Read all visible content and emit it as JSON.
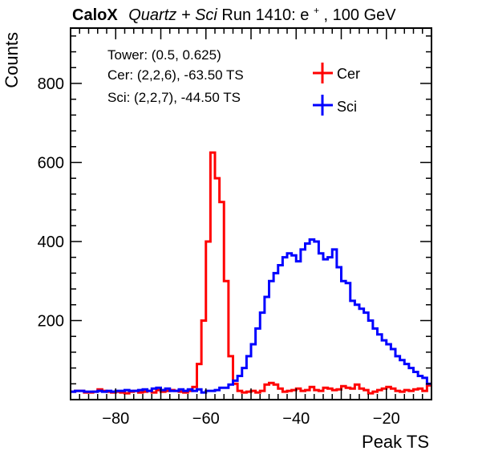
{
  "chart_data": {
    "type": "step-histogram",
    "title": {
      "brand": "CaloX",
      "subtitle_italic": "Quartz + Sci",
      "rest": " Run 1410: e",
      "superscript": "+",
      "tail": ", 100 GeV"
    },
    "xlabel": "Peak TS",
    "ylabel": "Counts",
    "xlim": [
      -90,
      -10
    ],
    "ylim": [
      0,
      940
    ],
    "x_ticks": [
      -80,
      -60,
      -40,
      -20
    ],
    "y_ticks": [
      200,
      400,
      600,
      800
    ],
    "info_lines": [
      "Tower: (0.5, 0.625)",
      "Cer: (2,2,6), -63.50 TS",
      "Sci: (2,2,7), -44.50 TS"
    ],
    "legend_position": "top-right",
    "series": [
      {
        "name": "Cer",
        "color": "#ff0000",
        "bin_width": 1,
        "x_start": -90,
        "values": [
          20,
          22,
          22,
          18,
          18,
          20,
          26,
          22,
          20,
          18,
          20,
          18,
          16,
          20,
          22,
          18,
          20,
          22,
          18,
          24,
          20,
          22,
          24,
          22,
          20,
          18,
          22,
          32,
          90,
          200,
          400,
          625,
          560,
          500,
          300,
          110,
          40,
          22,
          18,
          20,
          22,
          18,
          22,
          38,
          42,
          38,
          28,
          20,
          22,
          24,
          28,
          22,
          24,
          32,
          24,
          22,
          30,
          28,
          24,
          26,
          34,
          30,
          28,
          38,
          28,
          24,
          16,
          20,
          24,
          28,
          32,
          28,
          22,
          20,
          24,
          22,
          26,
          28,
          22,
          36
        ]
      },
      {
        "name": "Sci",
        "color": "#0000ff",
        "bin_width": 1,
        "x_start": -90,
        "values": [
          20,
          22,
          22,
          20,
          20,
          20,
          22,
          20,
          22,
          20,
          22,
          22,
          24,
          22,
          22,
          24,
          26,
          22,
          28,
          30,
          24,
          28,
          22,
          22,
          26,
          22,
          26,
          22,
          26,
          18,
          22,
          22,
          24,
          30,
          30,
          38,
          48,
          60,
          80,
          110,
          140,
          180,
          220,
          260,
          300,
          320,
          340,
          360,
          370,
          365,
          350,
          380,
          395,
          405,
          400,
          370,
          355,
          360,
          380,
          335,
          300,
          295,
          250,
          240,
          230,
          220,
          200,
          180,
          165,
          150,
          140,
          128,
          110,
          100,
          90,
          80,
          70,
          60,
          55,
          40
        ]
      }
    ]
  }
}
